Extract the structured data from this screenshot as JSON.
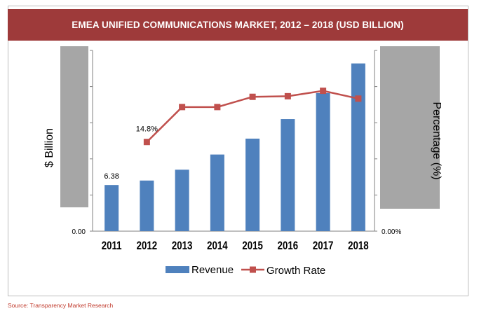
{
  "title": "EMEA UNIFIED COMMUNICATIONS MARKET, 2012 – 2018 (USD BILLION)",
  "source": "Source: Transparency Market Research",
  "colors": {
    "title_bg": "#9e3a3a",
    "bar": "#4f81bd",
    "line": "#c0504d",
    "axis_box": "#a6a6a6"
  },
  "chart_data": {
    "type": "bar",
    "categories": [
      "2011",
      "2012",
      "2013",
      "2014",
      "2015",
      "2016",
      "2017",
      "2018"
    ],
    "series": [
      {
        "name": "Revenue",
        "type": "bar",
        "axis": "left",
        "values": [
          6.38,
          7.0,
          8.5,
          10.6,
          12.8,
          15.5,
          19.1,
          23.2
        ]
      },
      {
        "name": "Growth Rate",
        "type": "line",
        "axis": "right",
        "values": [
          null,
          14.8,
          20.6,
          20.6,
          22.3,
          22.4,
          23.3,
          22.0
        ]
      }
    ],
    "data_labels": {
      "revenue_2011": "6.38",
      "growth_2012": "14.8%"
    },
    "ylabel": "$ Billion",
    "y2label": "Percentage (%)",
    "ylim": [
      0,
      25
    ],
    "y2lim": [
      0,
      30
    ],
    "y_min_label": "0.00",
    "y2_min_label": "0.00%",
    "legend_position": "bottom",
    "grid": false
  }
}
